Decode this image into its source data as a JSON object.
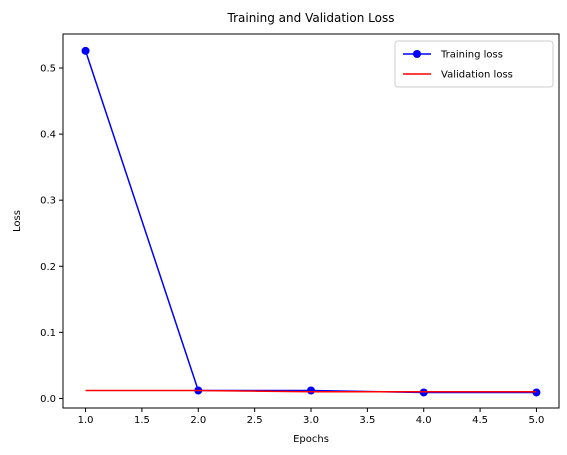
{
  "chart_data": {
    "type": "line",
    "title": "Training and Validation Loss",
    "xlabel": "Epochs",
    "ylabel": "Loss",
    "xlim": [
      0.8,
      5.2
    ],
    "ylim": [
      -0.0145,
      0.5515
    ],
    "x_ticks": [
      "1.0",
      "1.5",
      "2.0",
      "2.5",
      "3.0",
      "3.5",
      "4.0",
      "4.5",
      "5.0"
    ],
    "y_ticks": [
      "0.0",
      "0.1",
      "0.2",
      "0.3",
      "0.4",
      "0.5"
    ],
    "grid": false,
    "legend": "top-right",
    "series": [
      {
        "name": "Training loss",
        "style": "line-marker",
        "color": "#0000ff",
        "x": [
          1,
          2,
          3,
          4,
          5
        ],
        "y": [
          0.526,
          0.012,
          0.012,
          0.009,
          0.009
        ]
      },
      {
        "name": "Validation loss",
        "style": "line",
        "color": "#ff0000",
        "x": [
          1,
          2,
          3,
          4,
          5
        ],
        "y": [
          0.012,
          0.012,
          0.01,
          0.01,
          0.01
        ]
      }
    ]
  }
}
